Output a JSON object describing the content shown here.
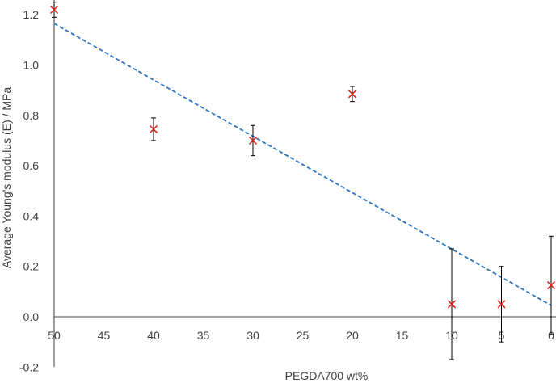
{
  "chart_data": {
    "type": "scatter",
    "title": "",
    "xlabel": "PEGDA700 wt%",
    "ylabel": "Average Young's modulus (E) / MPa",
    "x_reversed": true,
    "x_scale": "categorical",
    "x_ticks": [
      "50",
      "45",
      "40",
      "35",
      "30",
      "25",
      "20",
      "15",
      "10",
      "5",
      "0"
    ],
    "y_ticks": [
      "-0.2",
      "0.0",
      "0.2",
      "0.4",
      "0.6",
      "0.8",
      "1.0",
      "1.2"
    ],
    "xlim": [
      0,
      50
    ],
    "ylim": [
      -0.2,
      1.25
    ],
    "grid": false,
    "series": [
      {
        "marker": "x",
        "color": "#e0211b",
        "points": [
          {
            "x": 50,
            "y": 1.22,
            "err": 0.03
          },
          {
            "x": 40,
            "y": 0.745,
            "err": 0.045
          },
          {
            "x": 30,
            "y": 0.7,
            "err": 0.06
          },
          {
            "x": 20,
            "y": 0.885,
            "err": 0.03
          },
          {
            "x": 10,
            "y": 0.05,
            "err": 0.22
          },
          {
            "x": 5,
            "y": 0.05,
            "err": 0.15
          },
          {
            "x": 0,
            "y": 0.125,
            "err": 0.195
          }
        ]
      }
    ],
    "trendline": {
      "type": "linear",
      "style": "dashed",
      "color": "#2e75c3",
      "points": [
        {
          "x": 50,
          "y": 1.165
        },
        {
          "x": 0,
          "y": 0.045
        }
      ]
    }
  }
}
